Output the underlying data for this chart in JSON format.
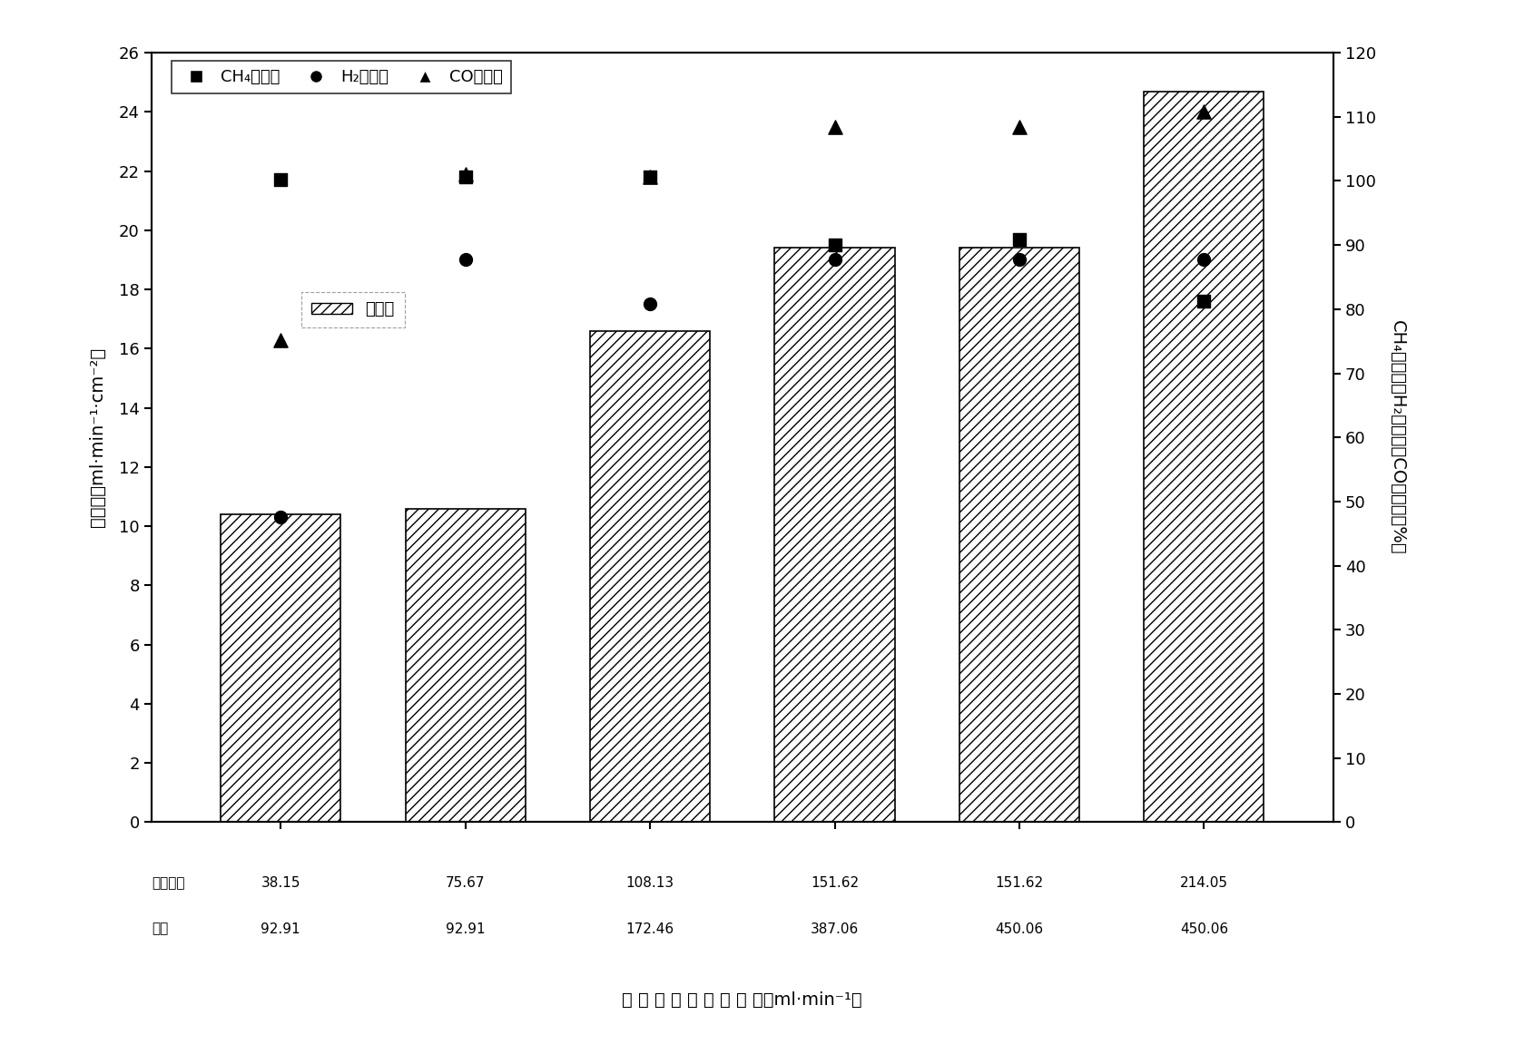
{
  "x_positions": [
    0,
    1,
    2,
    3,
    4,
    5
  ],
  "bar_heights": [
    10.4,
    10.6,
    16.6,
    19.4,
    19.4,
    24.7
  ],
  "ch4_values": [
    21.7,
    21.8,
    21.8,
    19.5,
    19.7,
    17.6
  ],
  "h2_values": [
    10.3,
    19.0,
    17.5,
    19.0,
    19.0,
    19.0
  ],
  "co_values": [
    16.3,
    21.9,
    21.8,
    23.5,
    23.5,
    24.0
  ],
  "x_labels_line1": [
    "焉炉煤气",
    "38.15",
    "75.67",
    "108.13",
    "151.62",
    "151.62",
    "214.05"
  ],
  "x_labels_line2": [
    "空气",
    "92.91",
    "92.91",
    "172.46",
    "387.06",
    "450.06",
    "450.06"
  ],
  "bar_color": "#ffffff",
  "bar_edgecolor": "#000000",
  "hatch": "///",
  "left_ylabel_line1": "透氧量",
  "left_ylabel_line2": "ml·min⁻¹·cm⁻²",
  "right_ylabel": "CH₄转化率、H₂选择性、CO选择性（%）",
  "xlabel": "焉 炉 煤 气 和 空 气 流 量（ml·min⁻¹）",
  "left_ylim": [
    0,
    26
  ],
  "right_ylim": [
    0,
    120
  ],
  "left_yticks": [
    0,
    2,
    4,
    6,
    8,
    10,
    12,
    14,
    16,
    18,
    20,
    22,
    24,
    26
  ],
  "right_yticks": [
    0,
    10,
    20,
    30,
    40,
    50,
    60,
    70,
    80,
    90,
    100,
    110,
    120
  ],
  "legend1_label": "CH₄转化率",
  "legend2_label": "H₂选择性",
  "legend3_label": "CO选择性",
  "legend4_label": "透氧量",
  "axis_fontsize": 14,
  "tick_fontsize": 13,
  "legend_fontsize": 13
}
